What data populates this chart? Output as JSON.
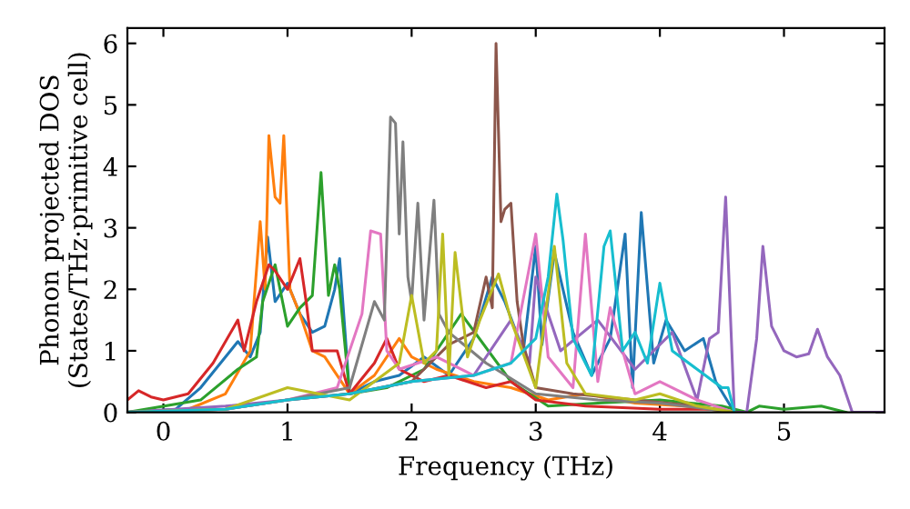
{
  "chart_data": {
    "type": "line",
    "xlabel": "Frequency (THz)",
    "ylabel": "Phonon projected DOS\n(States/THz·primitive cell)",
    "xlim": [
      -0.29,
      5.81
    ],
    "ylim": [
      0,
      6.25
    ],
    "xticks": [
      0,
      1,
      2,
      3,
      4,
      5
    ],
    "yticks": [
      0,
      1,
      2,
      3,
      4,
      5,
      6
    ],
    "grid": false,
    "legend": false,
    "marker": "none",
    "line_style": "solid",
    "series": [
      {
        "color": "#1f77b4",
        "x": [
          -0.29,
          0.1,
          0.3,
          0.5,
          0.6,
          0.7,
          0.78,
          0.84,
          0.9,
          1.0,
          1.1,
          1.2,
          1.3,
          1.38,
          1.42,
          1.5,
          1.7,
          1.9,
          2.1,
          2.3,
          2.5,
          2.65,
          2.75,
          2.9,
          3.0,
          3.05,
          3.15,
          3.3,
          3.45,
          3.6,
          3.72,
          3.78,
          3.85,
          3.95,
          4.05,
          4.2,
          4.35,
          4.45,
          4.6
        ],
        "values": [
          0,
          0.05,
          0.4,
          0.9,
          1.15,
          0.9,
          1.3,
          2.85,
          1.8,
          2.1,
          1.6,
          1.3,
          1.4,
          2.0,
          2.5,
          0.3,
          0.5,
          0.6,
          0.9,
          0.6,
          1.2,
          2.2,
          1.8,
          1.0,
          2.7,
          1.1,
          2.6,
          1.3,
          0.6,
          1.2,
          2.9,
          0.4,
          3.25,
          0.8,
          1.5,
          1.0,
          1.2,
          0.5,
          0
        ]
      },
      {
        "color": "#ff7f0e",
        "x": [
          -0.29,
          0.2,
          0.5,
          0.7,
          0.78,
          0.82,
          0.85,
          0.9,
          0.94,
          0.97,
          1.02,
          1.1,
          1.2,
          1.3,
          1.5,
          1.7,
          1.9,
          2.0,
          2.2,
          2.5,
          2.8,
          3.1,
          3.4,
          3.8,
          4.2,
          4.6
        ],
        "values": [
          0,
          0.05,
          0.3,
          1.0,
          3.1,
          2.0,
          4.5,
          3.5,
          3.4,
          4.5,
          2.0,
          1.6,
          1.0,
          0.9,
          0.3,
          0.6,
          1.2,
          0.9,
          0.7,
          0.5,
          0.4,
          0.2,
          0.3,
          0.15,
          0.1,
          0
        ]
      },
      {
        "color": "#2ca02c",
        "x": [
          -0.29,
          0.3,
          0.6,
          0.75,
          0.8,
          0.9,
          1.0,
          1.1,
          1.2,
          1.27,
          1.33,
          1.38,
          1.42,
          1.5,
          1.8,
          2.1,
          2.4,
          2.8,
          3.1,
          3.5,
          4.0,
          4.5,
          4.7,
          4.8,
          5.0,
          5.3,
          5.5
        ],
        "values": [
          0,
          0.2,
          0.7,
          0.9,
          1.8,
          2.4,
          1.4,
          1.7,
          1.9,
          3.9,
          1.9,
          2.4,
          2.0,
          0.3,
          0.4,
          0.7,
          1.6,
          0.5,
          0.1,
          0.15,
          0.2,
          0.1,
          0,
          0.1,
          0.05,
          0.1,
          0
        ]
      },
      {
        "color": "#d62728",
        "x": [
          -0.29,
          -0.2,
          -0.1,
          0.0,
          0.2,
          0.4,
          0.6,
          0.65,
          0.75,
          0.85,
          0.9,
          1.0,
          1.1,
          1.15,
          1.2,
          1.3,
          1.4,
          1.5,
          1.7,
          1.8,
          1.9,
          2.1,
          2.3,
          2.6,
          2.8,
          3.0,
          3.4,
          4.0,
          4.5,
          4.6
        ],
        "values": [
          0.2,
          0.35,
          0.25,
          0.2,
          0.3,
          0.8,
          1.5,
          1.0,
          1.8,
          2.4,
          2.3,
          2.0,
          2.5,
          1.8,
          1.0,
          1.0,
          1.0,
          0.3,
          0.8,
          1.2,
          0.7,
          0.5,
          0.6,
          0.4,
          0.5,
          0.2,
          0.1,
          0.05,
          0.05,
          0
        ]
      },
      {
        "color": "#9467bd",
        "x": [
          -0.29,
          0.5,
          1.0,
          1.5,
          2.0,
          2.5,
          2.8,
          2.95,
          3.0,
          3.2,
          3.5,
          3.8,
          4.1,
          4.3,
          4.4,
          4.47,
          4.53,
          4.6,
          4.7,
          4.78,
          4.83,
          4.9,
          5.0,
          5.1,
          5.2,
          5.27,
          5.35,
          5.45,
          5.55,
          5.8
        ],
        "values": [
          0,
          0.1,
          0.2,
          0.3,
          0.5,
          0.6,
          1.5,
          0.8,
          2.2,
          1.0,
          1.5,
          0.7,
          1.3,
          0.2,
          1.2,
          1.3,
          3.5,
          0,
          0,
          1.2,
          2.7,
          1.4,
          1.0,
          0.9,
          0.95,
          1.35,
          0.9,
          0.6,
          0,
          0
        ]
      },
      {
        "color": "#8c564b",
        "x": [
          -0.29,
          0.5,
          1.0,
          1.5,
          2.0,
          2.3,
          2.5,
          2.6,
          2.65,
          2.68,
          2.72,
          2.75,
          2.8,
          2.85,
          2.9,
          3.0,
          3.3,
          3.8,
          4.3,
          4.6
        ],
        "values": [
          0,
          0.05,
          0.2,
          0.3,
          0.5,
          1.1,
          1.3,
          2.2,
          1.7,
          6.0,
          3.1,
          3.3,
          3.4,
          1.8,
          1.1,
          0.4,
          0.3,
          0.2,
          0.1,
          0
        ]
      },
      {
        "color": "#e377c2",
        "x": [
          -0.29,
          0.5,
          1.0,
          1.4,
          1.6,
          1.67,
          1.75,
          1.8,
          1.9,
          2.2,
          2.5,
          2.8,
          3.0,
          3.1,
          3.3,
          3.4,
          3.5,
          3.6,
          3.8,
          4.0,
          4.3,
          4.6
        ],
        "values": [
          0,
          0.05,
          0.2,
          0.4,
          1.6,
          2.95,
          2.9,
          1.0,
          0.7,
          0.9,
          0.6,
          0.8,
          2.9,
          0.9,
          0.4,
          2.9,
          0.5,
          1.7,
          0.3,
          0.5,
          0.2,
          0
        ]
      },
      {
        "color": "#7f7f7f",
        "x": [
          -0.29,
          0.5,
          1.0,
          1.5,
          1.7,
          1.78,
          1.83,
          1.87,
          1.9,
          1.93,
          1.97,
          2.0,
          2.05,
          2.1,
          2.18,
          2.22,
          2.3,
          2.6,
          3.0,
          3.5,
          4.0,
          4.6
        ],
        "values": [
          0,
          0.05,
          0.2,
          0.4,
          1.8,
          1.5,
          4.8,
          4.7,
          2.9,
          4.4,
          2.2,
          1.8,
          3.4,
          1.5,
          3.45,
          1.6,
          1.3,
          0.8,
          0.3,
          0.2,
          0.15,
          0
        ]
      },
      {
        "color": "#bcbd22",
        "x": [
          -0.29,
          0.5,
          1.0,
          1.5,
          1.9,
          2.0,
          2.1,
          2.2,
          2.25,
          2.3,
          2.35,
          2.45,
          2.55,
          2.7,
          2.8,
          3.0,
          3.15,
          3.25,
          3.4,
          3.8,
          4.0,
          4.3,
          4.6
        ],
        "values": [
          0,
          0.05,
          0.4,
          0.2,
          0.8,
          1.9,
          0.8,
          1.0,
          2.9,
          0.6,
          2.6,
          0.9,
          1.5,
          2.25,
          1.5,
          0.4,
          2.7,
          0.8,
          0.3,
          0.2,
          0.3,
          0.1,
          0
        ]
      },
      {
        "color": "#17becf",
        "x": [
          -0.29,
          0.5,
          1.0,
          1.5,
          2.0,
          2.5,
          2.8,
          3.0,
          3.1,
          3.17,
          3.22,
          3.3,
          3.45,
          3.55,
          3.6,
          3.7,
          3.8,
          3.9,
          4.0,
          4.1,
          4.3,
          4.5,
          4.55,
          4.6
        ],
        "values": [
          0,
          0.05,
          0.2,
          0.3,
          0.5,
          0.6,
          0.8,
          1.2,
          2.2,
          3.55,
          2.8,
          1.2,
          0.6,
          2.7,
          2.95,
          1.0,
          1.3,
          0.8,
          2.1,
          1.0,
          0.7,
          0.4,
          0.4,
          0
        ]
      }
    ]
  }
}
